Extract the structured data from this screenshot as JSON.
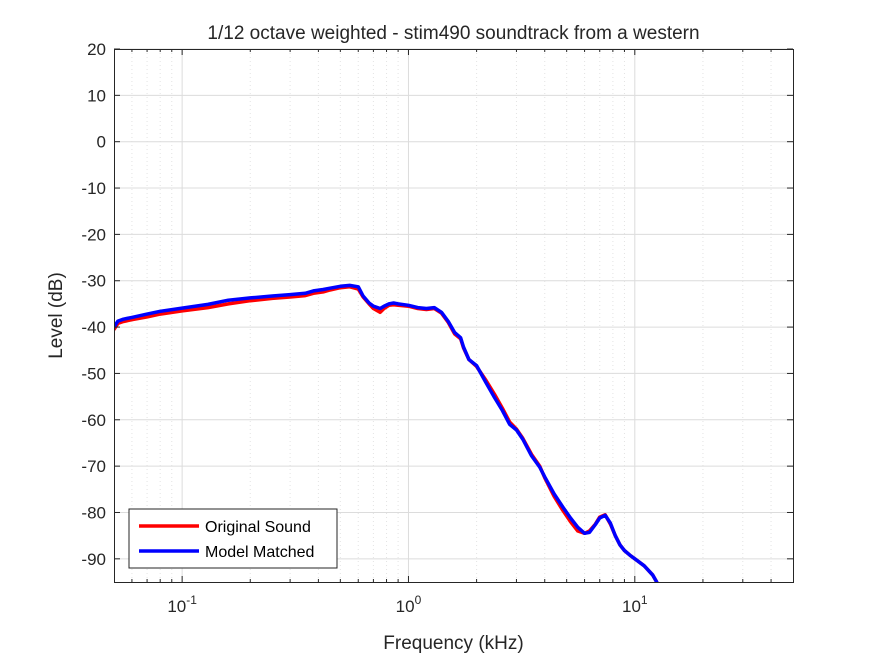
{
  "chart_data": {
    "type": "line",
    "title": "1/12 octave weighted - stim490 soundtrack from a western",
    "xlabel": "Frequency (kHz)",
    "ylabel": "Level (dB)",
    "xscale": "log",
    "xlim": [
      0.05,
      50
    ],
    "ylim": [
      -95,
      20
    ],
    "grid": true,
    "minor_grid": "x",
    "legend_position": "bottom-left",
    "x_ticks": [
      {
        "value": 0.1,
        "base": "10",
        "exp": "-1"
      },
      {
        "value": 1,
        "base": "10",
        "exp": "0"
      },
      {
        "value": 10,
        "base": "10",
        "exp": "1"
      }
    ],
    "y_ticks": [
      20,
      10,
      0,
      -10,
      -20,
      -30,
      -40,
      -50,
      -60,
      -70,
      -80,
      -90
    ],
    "series": [
      {
        "name": "Original Sound",
        "color": "#ff0000",
        "x": [
          0.05,
          0.052,
          0.055,
          0.06,
          0.07,
          0.08,
          0.1,
          0.13,
          0.16,
          0.2,
          0.25,
          0.3,
          0.35,
          0.38,
          0.42,
          0.45,
          0.5,
          0.55,
          0.6,
          0.63,
          0.67,
          0.7,
          0.75,
          0.78,
          0.82,
          0.86,
          0.9,
          1.0,
          1.1,
          1.2,
          1.3,
          1.4,
          1.5,
          1.6,
          1.7,
          1.75,
          1.85,
          2.0,
          2.2,
          2.4,
          2.6,
          2.8,
          3.0,
          3.2,
          3.5,
          3.8,
          4.0,
          4.4,
          4.8,
          5.2,
          5.6,
          6.0,
          6.3,
          6.7,
          7.0,
          7.4,
          7.8,
          8.2,
          8.6,
          9.0,
          9.5,
          10.0,
          11.0,
          12.0,
          12.5
        ],
        "y": [
          -40.5,
          -39.2,
          -38.8,
          -38.4,
          -37.8,
          -37.2,
          -36.5,
          -35.8,
          -35.0,
          -34.3,
          -33.8,
          -33.5,
          -33.2,
          -32.7,
          -32.4,
          -32.0,
          -31.5,
          -31.3,
          -31.8,
          -33.5,
          -35.0,
          -36.0,
          -36.8,
          -36.0,
          -35.3,
          -35.2,
          -35.3,
          -35.5,
          -36.0,
          -36.2,
          -36.0,
          -37.0,
          -39.0,
          -41.5,
          -42.5,
          -44.5,
          -47.0,
          -48.5,
          -51.5,
          -54.5,
          -57.5,
          -60.5,
          -62.0,
          -64.0,
          -67.5,
          -70.0,
          -72.5,
          -76.5,
          -79.5,
          -82.0,
          -84.0,
          -84.5,
          -84.0,
          -82.5,
          -81.0,
          -80.5,
          -82.5,
          -85.0,
          -87.0,
          -88.2,
          -89.2,
          -90.0,
          -91.5,
          -93.5,
          -95.0
        ]
      },
      {
        "name": "Model Matched",
        "color": "#0000ff",
        "x": [
          0.05,
          0.052,
          0.055,
          0.06,
          0.07,
          0.08,
          0.1,
          0.13,
          0.16,
          0.2,
          0.25,
          0.3,
          0.35,
          0.38,
          0.42,
          0.45,
          0.5,
          0.55,
          0.6,
          0.63,
          0.67,
          0.7,
          0.75,
          0.78,
          0.82,
          0.86,
          0.9,
          1.0,
          1.1,
          1.2,
          1.3,
          1.4,
          1.5,
          1.6,
          1.7,
          1.75,
          1.85,
          2.0,
          2.2,
          2.4,
          2.6,
          2.8,
          3.0,
          3.2,
          3.5,
          3.8,
          4.0,
          4.4,
          4.8,
          5.2,
          5.6,
          6.0,
          6.3,
          6.7,
          7.0,
          7.4,
          7.8,
          8.2,
          8.6,
          9.0,
          9.5,
          10.0,
          11.0,
          12.0,
          12.5
        ],
        "y": [
          -40.0,
          -38.7,
          -38.3,
          -37.9,
          -37.2,
          -36.6,
          -35.9,
          -35.1,
          -34.2,
          -33.7,
          -33.3,
          -33.0,
          -32.7,
          -32.2,
          -31.9,
          -31.6,
          -31.2,
          -31.0,
          -31.3,
          -33.3,
          -34.8,
          -35.5,
          -36.0,
          -35.5,
          -35.0,
          -34.8,
          -35.0,
          -35.3,
          -35.8,
          -36.0,
          -35.8,
          -36.8,
          -38.8,
          -41.2,
          -42.3,
          -44.3,
          -47.0,
          -48.3,
          -52.0,
          -55.2,
          -58.0,
          -61.0,
          -62.2,
          -64.2,
          -67.8,
          -70.2,
          -72.3,
          -76.0,
          -78.8,
          -81.2,
          -83.2,
          -84.5,
          -84.3,
          -82.6,
          -81.2,
          -80.6,
          -82.3,
          -85.0,
          -87.0,
          -88.2,
          -89.2,
          -90.0,
          -91.5,
          -93.5,
          -95.0
        ]
      }
    ]
  }
}
